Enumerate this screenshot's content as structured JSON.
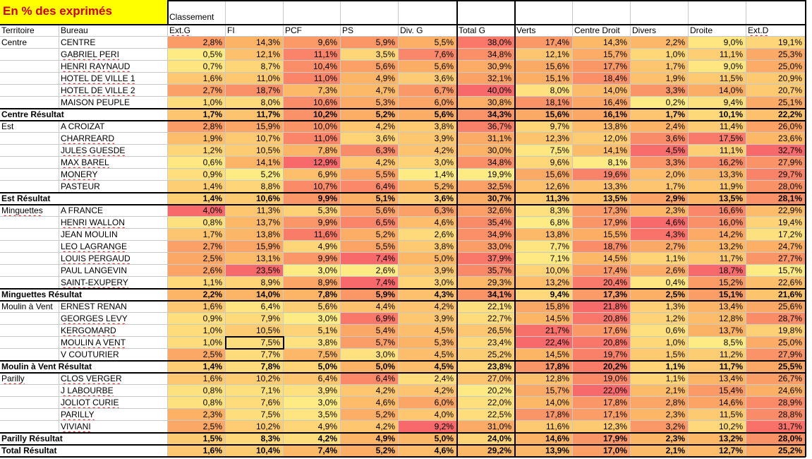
{
  "title": "En % des exprimés",
  "classement_label": "Classement",
  "headers": [
    "Territoire",
    "Bureau",
    "Ext.G",
    "FI",
    "PCF",
    "PS",
    "Div. G",
    "Total G",
    "Verts",
    "Centre Droit",
    "Divers",
    "Droite",
    "Ext.D"
  ],
  "rows": [
    {
      "kind": "data",
      "territoire": "Centre",
      "bureau": "CENTRE",
      "values": [
        "2,8%",
        "14,3%",
        "9,6%",
        "5,9%",
        "5,5%",
        "38,0%",
        "17,4%",
        "14,3%",
        "2,2%",
        "9,0%",
        "19,1%"
      ]
    },
    {
      "kind": "data",
      "territoire": "",
      "bureau": "GABRIEL PERI",
      "values": [
        "0,5%",
        "12,1%",
        "11,1%",
        "3,5%",
        "7,6%",
        "34,8%",
        "12,1%",
        "15,7%",
        "1,0%",
        "11,1%",
        "25,3%"
      ]
    },
    {
      "kind": "data",
      "territoire": "",
      "bureau": "HENRI RAYNAUD",
      "values": [
        "0,7%",
        "8,7%",
        "10,4%",
        "5,6%",
        "5,6%",
        "30,9%",
        "15,6%",
        "17,7%",
        "1,7%",
        "9,0%",
        "25,0%"
      ]
    },
    {
      "kind": "data",
      "territoire": "",
      "bureau": "HOTEL DE VILLE 1",
      "values": [
        "1,6%",
        "11,0%",
        "11,0%",
        "4,9%",
        "3,6%",
        "32,1%",
        "15,1%",
        "18,4%",
        "1,9%",
        "11,5%",
        "20,9%"
      ]
    },
    {
      "kind": "data",
      "territoire": "",
      "bureau": "HOTEL DE VILLE 2",
      "values": [
        "2,7%",
        "18,7%",
        "7,3%",
        "4,7%",
        "6,7%",
        "40,0%",
        "8,0%",
        "14,0%",
        "3,3%",
        "14,0%",
        "20,7%"
      ]
    },
    {
      "kind": "data",
      "territoire": "",
      "bureau": "MAISON PEUPLE",
      "values": [
        "1,0%",
        "8,0%",
        "10,6%",
        "5,3%",
        "6,0%",
        "30,8%",
        "18,1%",
        "16,4%",
        "0,2%",
        "9,4%",
        "25,1%"
      ]
    },
    {
      "kind": "total",
      "territoire": "Centre Résultat",
      "bureau": "",
      "values": [
        "1,7%",
        "11,7%",
        "10,2%",
        "5,2%",
        "5,6%",
        "34,3%",
        "15,6%",
        "16,1%",
        "1,7%",
        "10,1%",
        "22,2%"
      ]
    },
    {
      "kind": "data",
      "territoire": "Est",
      "bureau": "A CROIZAT",
      "values": [
        "2,8%",
        "15,9%",
        "10,0%",
        "4,2%",
        "3,8%",
        "36,7%",
        "9,7%",
        "13,8%",
        "2,4%",
        "11,4%",
        "26,0%"
      ]
    },
    {
      "kind": "data",
      "territoire": "",
      "bureau": "CHARREARD",
      "values": [
        "1,9%",
        "10,7%",
        "11,0%",
        "3,6%",
        "3,9%",
        "31,1%",
        "12,3%",
        "12,0%",
        "3,6%",
        "17,5%",
        "23,6%"
      ]
    },
    {
      "kind": "data",
      "territoire": "",
      "bureau": "JULES GUESDE",
      "values": [
        "1,2%",
        "10,5%",
        "7,8%",
        "6,3%",
        "4,2%",
        "30,0%",
        "7,5%",
        "14,1%",
        "4,5%",
        "11,1%",
        "32,7%"
      ]
    },
    {
      "kind": "data",
      "territoire": "",
      "bureau": "MAX BAREL",
      "values": [
        "0,6%",
        "14,1%",
        "12,9%",
        "4,2%",
        "3,0%",
        "34,8%",
        "9,6%",
        "8,1%",
        "3,3%",
        "16,2%",
        "27,9%"
      ]
    },
    {
      "kind": "data",
      "territoire": "",
      "bureau": "MONERY",
      "values": [
        "0,9%",
        "5,2%",
        "6,9%",
        "5,5%",
        "1,4%",
        "19,9%",
        "15,6%",
        "19,6%",
        "2,0%",
        "13,3%",
        "29,7%"
      ]
    },
    {
      "kind": "data",
      "territoire": "",
      "bureau": "PASTEUR",
      "values": [
        "1,4%",
        "8,8%",
        "10,7%",
        "6,4%",
        "5,2%",
        "32,5%",
        "12,6%",
        "13,3%",
        "1,7%",
        "11,9%",
        "28,0%"
      ]
    },
    {
      "kind": "total",
      "territoire": "Est Résultat",
      "bureau": "",
      "values": [
        "1,4%",
        "10,6%",
        "9,9%",
        "5,1%",
        "3,6%",
        "30,7%",
        "11,3%",
        "13,5%",
        "2,9%",
        "13,5%",
        "28,1%"
      ]
    },
    {
      "kind": "data",
      "territoire": "Minguettes",
      "bureau": "A FRANCE",
      "values": [
        "4,0%",
        "11,3%",
        "5,3%",
        "5,6%",
        "6,3%",
        "32,6%",
        "8,3%",
        "17,3%",
        "2,3%",
        "16,6%",
        "22,9%"
      ]
    },
    {
      "kind": "data",
      "territoire": "",
      "bureau": "HENRI WALLON",
      "values": [
        "0,8%",
        "13,7%",
        "9,9%",
        "6,5%",
        "4,6%",
        "35,4%",
        "6,8%",
        "17,9%",
        "4,6%",
        "16,0%",
        "19,4%"
      ]
    },
    {
      "kind": "data",
      "territoire": "",
      "bureau": "JEAN MOULIN",
      "values": [
        "1,7%",
        "13,8%",
        "11,6%",
        "5,2%",
        "2,6%",
        "34,9%",
        "13,8%",
        "15,5%",
        "4,3%",
        "14,2%",
        "17,2%"
      ]
    },
    {
      "kind": "data",
      "territoire": "",
      "bureau": "LEO LAGRANGE",
      "values": [
        "2,7%",
        "15,9%",
        "4,9%",
        "5,5%",
        "3,8%",
        "33,0%",
        "7,7%",
        "18,7%",
        "2,7%",
        "13,2%",
        "24,7%"
      ]
    },
    {
      "kind": "data",
      "territoire": "",
      "bureau": "LOUIS PERGAUD",
      "values": [
        "2,5%",
        "13,1%",
        "9,9%",
        "7,4%",
        "5,0%",
        "37,9%",
        "7,1%",
        "14,5%",
        "1,1%",
        "11,7%",
        "27,7%"
      ]
    },
    {
      "kind": "data",
      "territoire": "",
      "bureau": "PAUL LANGEVIN",
      "values": [
        "2,6%",
        "23,5%",
        "3,0%",
        "2,6%",
        "3,9%",
        "35,7%",
        "10,0%",
        "17,4%",
        "2,6%",
        "18,7%",
        "15,7%"
      ]
    },
    {
      "kind": "data",
      "territoire": "",
      "bureau": "SAINT-EXUPERY",
      "values": [
        "1,1%",
        "8,9%",
        "8,9%",
        "7,4%",
        "3,0%",
        "29,3%",
        "13,2%",
        "20,4%",
        "0,4%",
        "15,2%",
        "22,6%"
      ]
    },
    {
      "kind": "total",
      "territoire": "Minguettes Résultat",
      "bureau": "",
      "values": [
        "2,2%",
        "14,0%",
        "7,8%",
        "5,9%",
        "4,3%",
        "34,1%",
        "9,4%",
        "17,3%",
        "2,5%",
        "15,1%",
        "21,6%"
      ]
    },
    {
      "kind": "data",
      "territoire": "Moulin à Vent",
      "bureau": "ERNEST RENAN",
      "values": [
        "1,6%",
        "6,4%",
        "5,6%",
        "4,4%",
        "4,2%",
        "22,1%",
        "15,8%",
        "21,8%",
        "1,3%",
        "13,4%",
        "25,6%"
      ]
    },
    {
      "kind": "data",
      "territoire": "",
      "bureau": "GEORGES LEVY",
      "values": [
        "0,9%",
        "7,9%",
        "3,0%",
        "6,9%",
        "3,9%",
        "22,7%",
        "14,5%",
        "20,8%",
        "1,2%",
        "12,8%",
        "28,7%"
      ]
    },
    {
      "kind": "data",
      "territoire": "",
      "bureau": "KERGOMARD",
      "values": [
        "1,0%",
        "10,5%",
        "5,1%",
        "5,4%",
        "4,5%",
        "26,5%",
        "21,7%",
        "17,6%",
        "0,6%",
        "13,7%",
        "19,8%"
      ]
    },
    {
      "kind": "data",
      "territoire": "",
      "bureau": "MOULIN A VENT",
      "values": [
        "1,0%",
        "7,5%",
        "3,8%",
        "5,7%",
        "5,3%",
        "23,4%",
        "22,4%",
        "20,8%",
        "1,0%",
        "8,5%",
        "25,0%"
      ]
    },
    {
      "kind": "data",
      "territoire": "",
      "bureau": "V COUTURIER",
      "values": [
        "2,5%",
        "7,7%",
        "7,5%",
        "3,0%",
        "4,5%",
        "25,2%",
        "14,5%",
        "19,7%",
        "1,5%",
        "11,2%",
        "27,9%"
      ]
    },
    {
      "kind": "total",
      "territoire": "Moulin à Vent Résultat",
      "bureau": "",
      "values": [
        "1,4%",
        "7,8%",
        "5,0%",
        "5,0%",
        "4,5%",
        "23,8%",
        "17,8%",
        "20,2%",
        "1,1%",
        "11,7%",
        "25,5%"
      ]
    },
    {
      "kind": "data",
      "territoire": "Parilly",
      "bureau": "CLOS VERGER",
      "values": [
        "1,6%",
        "10,2%",
        "6,4%",
        "6,4%",
        "2,4%",
        "27,0%",
        "12,8%",
        "19,0%",
        "1,1%",
        "13,4%",
        "26,7%"
      ]
    },
    {
      "kind": "data",
      "territoire": "",
      "bureau": "J LABOURBE",
      "values": [
        "0,8%",
        "7,1%",
        "3,9%",
        "4,2%",
        "4,2%",
        "20,2%",
        "15,7%",
        "22,0%",
        "2,1%",
        "15,4%",
        "24,6%"
      ]
    },
    {
      "kind": "data",
      "territoire": "",
      "bureau": "JOLIOT CURIE",
      "values": [
        "0,8%",
        "7,6%",
        "3,0%",
        "4,6%",
        "6,0%",
        "22,0%",
        "14,0%",
        "17,8%",
        "2,8%",
        "14,6%",
        "28,9%"
      ]
    },
    {
      "kind": "data",
      "territoire": "",
      "bureau": "PARILLY",
      "values": [
        "2,3%",
        "7,5%",
        "3,5%",
        "5,2%",
        "4,0%",
        "22,5%",
        "17,8%",
        "17,1%",
        "2,3%",
        "11,5%",
        "28,8%"
      ]
    },
    {
      "kind": "data",
      "territoire": "",
      "bureau": "VIVIANI",
      "values": [
        "2,5%",
        "10,2%",
        "4,9%",
        "4,2%",
        "9,2%",
        "31,0%",
        "11,6%",
        "12,3%",
        "3,2%",
        "10,2%",
        "31,7%"
      ]
    },
    {
      "kind": "total",
      "territoire": "Parilly Résultat",
      "bureau": "",
      "values": [
        "1,5%",
        "8,3%",
        "4,2%",
        "4,9%",
        "5,0%",
        "24,0%",
        "14,6%",
        "17,9%",
        "2,3%",
        "13,2%",
        "28,0%"
      ]
    },
    {
      "kind": "total",
      "territoire": "Total Résultat",
      "bureau": "",
      "values": [
        "1,6%",
        "10,4%",
        "7,4%",
        "5,2%",
        "4,6%",
        "29,2%",
        "13,9%",
        "17,0%",
        "2,1%",
        "12,7%",
        "25,2%"
      ]
    }
  ],
  "selected_cell": {
    "row": 25,
    "col": 1
  },
  "colors": {
    "title_bg": "#ffff00",
    "title_text": "#cc0000",
    "heat_low": "#ffeb84",
    "heat_mid": "#fcb365",
    "heat_high": "#f8696b"
  }
}
